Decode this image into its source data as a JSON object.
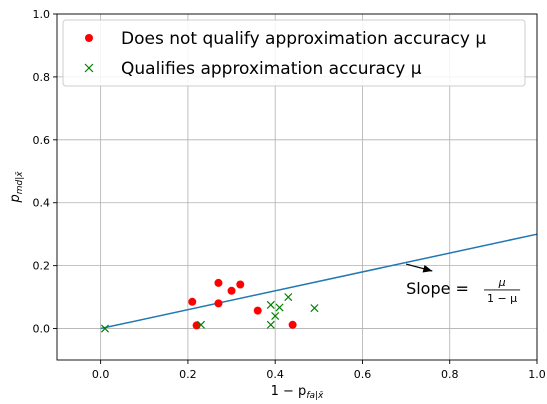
{
  "chart_data": {
    "type": "scatter",
    "title": "",
    "xlim": [
      -0.1,
      1.0
    ],
    "ylim": [
      -0.1,
      1.0
    ],
    "xticks": [
      0.0,
      0.2,
      0.4,
      0.6,
      0.8,
      1.0
    ],
    "xtick_labels": [
      "0.0",
      "0.2",
      "0.4",
      "0.6",
      "0.8",
      "1.0"
    ],
    "yticks": [
      0.0,
      0.2,
      0.4,
      0.6,
      0.8,
      1.0
    ],
    "ytick_labels": [
      "0.0",
      "0.2",
      "0.4",
      "0.6",
      "0.8",
      "1.0"
    ],
    "xlabel": {
      "main": "1 − p",
      "sub": "fa|x̄"
    },
    "ylabel": {
      "main": "p",
      "sub": "md|x̄"
    },
    "grid": true,
    "legend_position": "top-left",
    "series": [
      {
        "name": "Does not qualify approximation accuracy μ",
        "marker": "circle",
        "color": "#ff0000",
        "points": [
          [
            0.21,
            0.085
          ],
          [
            0.22,
            0.01
          ],
          [
            0.27,
            0.145
          ],
          [
            0.27,
            0.08
          ],
          [
            0.3,
            0.12
          ],
          [
            0.32,
            0.14
          ],
          [
            0.36,
            0.057
          ],
          [
            0.44,
            0.012
          ]
        ]
      },
      {
        "name": "Qualifies approximation accuracy μ",
        "marker": "x",
        "color": "#008000",
        "points": [
          [
            0.01,
            0.0
          ],
          [
            0.23,
            0.012
          ],
          [
            0.39,
            0.075
          ],
          [
            0.39,
            0.012
          ],
          [
            0.4,
            0.04
          ],
          [
            0.41,
            0.067
          ],
          [
            0.43,
            0.1
          ],
          [
            0.49,
            0.065
          ]
        ]
      }
    ],
    "line": {
      "color": "#1f77b4",
      "points": [
        [
          0.0,
          0.0
        ],
        [
          1.0,
          0.3
        ]
      ]
    },
    "annotation": {
      "text_prefix": "Slope = ",
      "fraction_numerator": "μ",
      "fraction_denominator": "1 − μ",
      "text_at": [
        0.7,
        0.11
      ],
      "arrow_from": [
        0.7,
        0.205
      ],
      "arrow_to": [
        0.76,
        0.183
      ]
    }
  }
}
